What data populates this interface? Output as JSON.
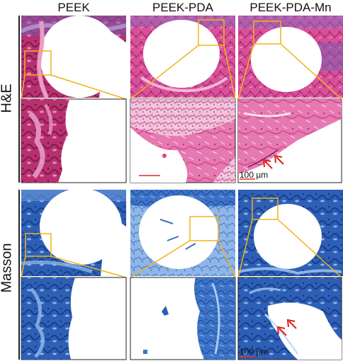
{
  "columns": [
    "PEEK",
    "PEEK-PDA",
    "PEEK-PDA-Mn"
  ],
  "rows": [
    "H&E",
    "Masson"
  ],
  "scale_bar_labels": [
    "100 µm",
    "100 µm"
  ],
  "colors": {
    "he_tissue": "#d6478e",
    "he_dark": "#8e1f56",
    "he_light": "#f2b3d2",
    "he_purple": "#7a5fb0",
    "masson_tissue": "#3a6fc4",
    "masson_dark": "#1e3f8e",
    "masson_light": "#9cc0e8",
    "zoom_box": "#f2b21b",
    "arrow": "#e0201a",
    "scale_bar_red": "#d9302a"
  }
}
